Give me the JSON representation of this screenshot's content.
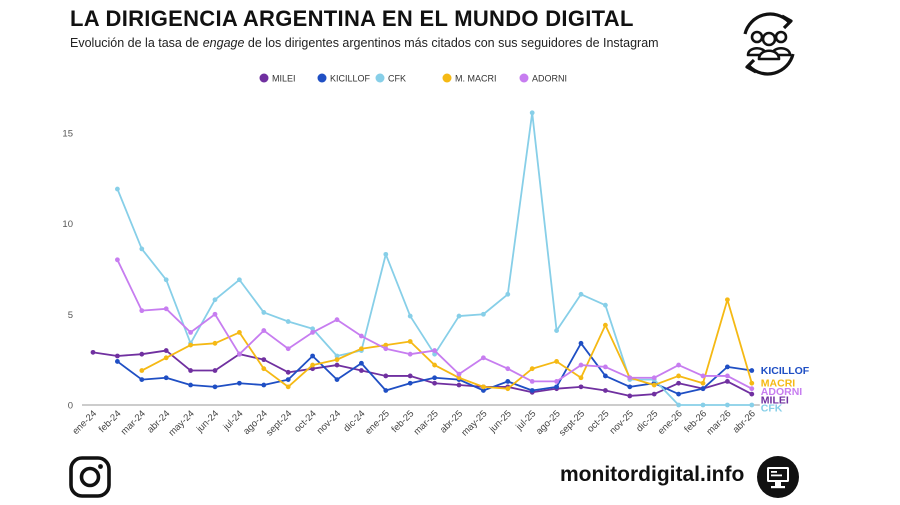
{
  "header": {
    "title": "LA DIRIGENCIA ARGENTINA EN EL MUNDO DIGITAL",
    "subtitle_pre": "Evolución de la tasa de ",
    "subtitle_em": "engage",
    "subtitle_post": " de los dirigentes argentinos más citados con sus seguidores de Instagram"
  },
  "footer": {
    "site": "monitordigital.info",
    "social_icon": "instagram-icon",
    "brand_icon": "monitor-icon"
  },
  "chart_data": {
    "type": "line",
    "title": "",
    "xlabel": "",
    "ylabel": "",
    "ylim": [
      0,
      16.5
    ],
    "yticks": [
      0,
      5,
      10,
      15
    ],
    "grid": false,
    "legend_position": "top",
    "categories": [
      "ene-24",
      "feb-24",
      "mar-24",
      "abr-24",
      "may-24",
      "jun-24",
      "jul-24",
      "ago-24",
      "sept-24",
      "oct-24",
      "nov-24",
      "dic-24",
      "ene-25",
      "feb-25",
      "mar-25",
      "abr-25",
      "may-25",
      "jun-25",
      "jul-25",
      "ago-25",
      "sept-25",
      "oct-25",
      "nov-25",
      "dic-25",
      "ene-26",
      "feb-26",
      "mar-26",
      "abr-26"
    ],
    "series": [
      {
        "name": "MILEI",
        "end_label": "MILEI",
        "color": "#7030a0",
        "values": [
          2.9,
          2.7,
          2.8,
          3.0,
          1.9,
          1.9,
          2.8,
          2.5,
          1.8,
          2.0,
          2.2,
          1.9,
          1.6,
          1.6,
          1.2,
          1.1,
          1.0,
          1.0,
          0.7,
          0.9,
          1.0,
          0.8,
          0.5,
          0.6,
          1.2,
          0.9,
          1.3,
          0.6
        ]
      },
      {
        "name": "KICILLOF",
        "end_label": "KICILLOF",
        "color": "#1f4fc4",
        "values": [
          null,
          2.4,
          1.4,
          1.5,
          1.1,
          1.0,
          1.2,
          1.1,
          1.4,
          2.7,
          1.4,
          2.3,
          0.8,
          1.2,
          1.5,
          1.4,
          0.8,
          1.3,
          0.8,
          1.0,
          3.4,
          1.6,
          1.0,
          1.2,
          0.6,
          0.9,
          2.1,
          1.9
        ]
      },
      {
        "name": "CFK",
        "end_label": "CFK",
        "color": "#87cfe8",
        "values": [
          null,
          11.9,
          8.6,
          6.9,
          3.4,
          5.8,
          6.9,
          5.1,
          4.6,
          4.2,
          2.7,
          3.0,
          8.3,
          4.9,
          2.8,
          4.9,
          5.0,
          6.1,
          16.1,
          4.1,
          6.1,
          5.5,
          1.4,
          1.4,
          0.0,
          0.0,
          0.0,
          0.0
        ]
      },
      {
        "name": "M. MACRI",
        "end_label": "MACRI",
        "color": "#f5b914",
        "values": [
          null,
          null,
          1.9,
          2.6,
          3.3,
          3.4,
          4.0,
          2.0,
          1.0,
          2.2,
          2.5,
          3.1,
          3.3,
          3.5,
          2.2,
          1.5,
          1.0,
          0.9,
          2.0,
          2.4,
          1.5,
          4.4,
          1.5,
          1.1,
          1.6,
          1.2,
          5.8,
          1.2
        ]
      },
      {
        "name": "ADORNI",
        "end_label": "ADORNI",
        "color": "#c77df0",
        "values": [
          null,
          8.0,
          5.2,
          5.3,
          4.0,
          5.0,
          2.8,
          4.1,
          3.1,
          4.0,
          4.7,
          3.8,
          3.1,
          2.8,
          3.0,
          1.7,
          2.6,
          2.0,
          1.3,
          1.3,
          2.2,
          2.1,
          1.5,
          1.5,
          2.2,
          1.6,
          1.6,
          0.9
        ]
      }
    ]
  }
}
